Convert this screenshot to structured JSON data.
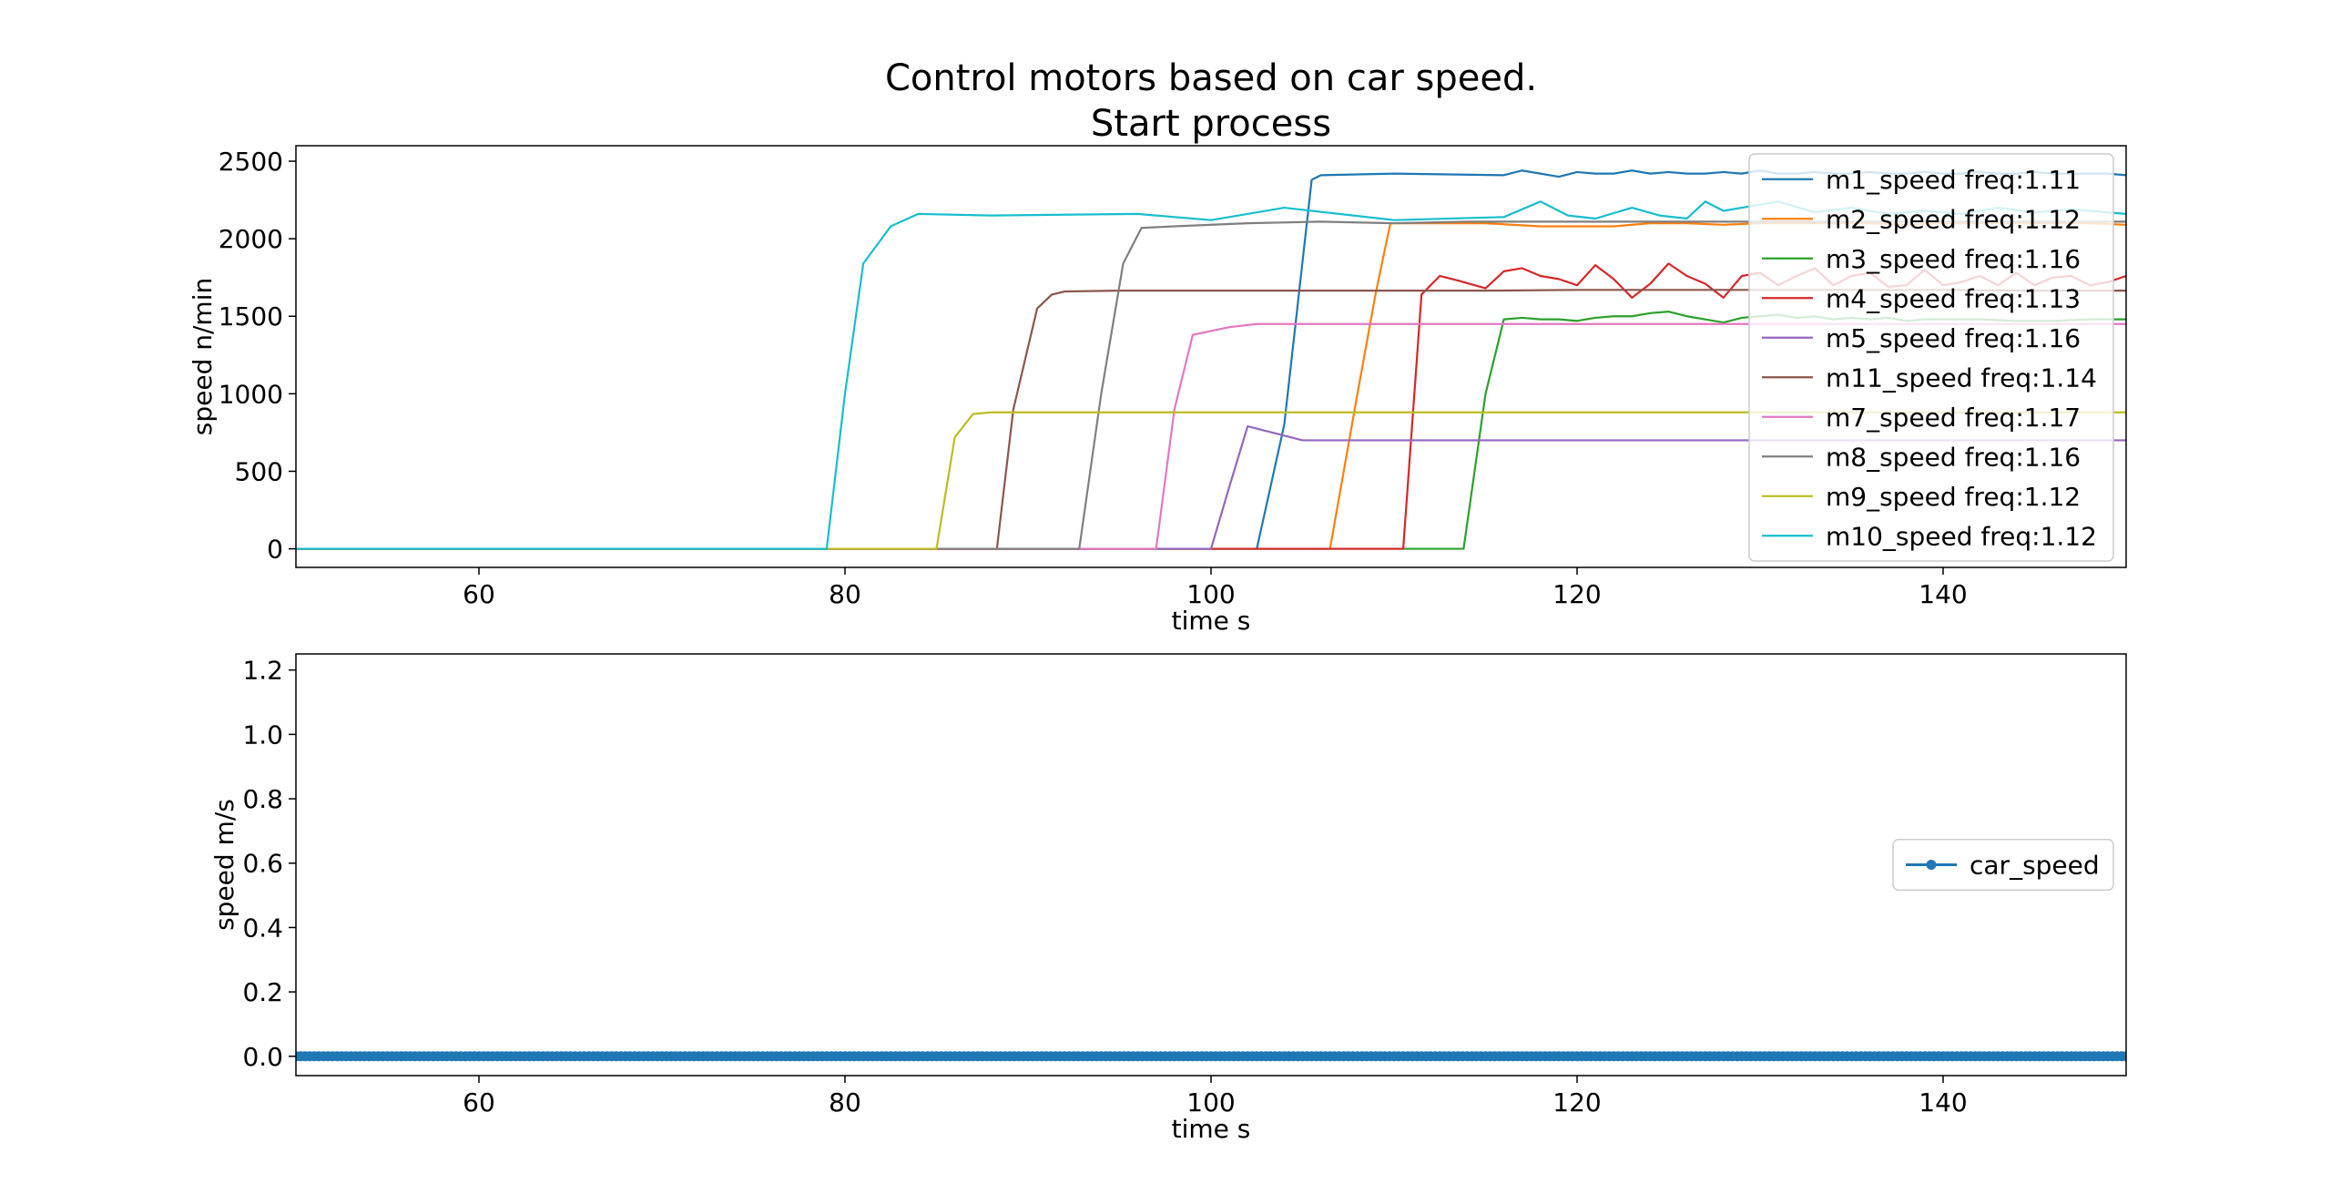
{
  "figure": {
    "title_line1": "Control motors based on car speed.",
    "title_line2": "Start process"
  },
  "chart_data": [
    {
      "type": "line",
      "xlabel": "time s",
      "ylabel": "speed n/min",
      "xlim": [
        50,
        150
      ],
      "ylim": [
        -120,
        2600
      ],
      "xticks": [
        60,
        80,
        100,
        120,
        140
      ],
      "yticks": [
        0,
        500,
        1000,
        1500,
        2000,
        2500
      ],
      "grid": false,
      "legend": "top-right",
      "series": [
        {
          "name": "m1_speed freq:1.11",
          "color": "#1f77b4",
          "x": [
            50,
            102.5,
            104,
            105.5,
            106,
            110,
            116,
            117,
            118,
            119,
            120,
            121,
            122,
            123,
            124,
            125,
            126,
            127,
            128,
            129,
            130,
            131,
            132,
            133,
            134,
            135,
            136,
            137,
            138,
            139,
            140,
            141,
            142,
            143,
            144,
            145,
            146,
            147,
            148,
            149,
            150
          ],
          "y": [
            0,
            0,
            800,
            2380,
            2410,
            2420,
            2410,
            2440,
            2420,
            2400,
            2430,
            2420,
            2420,
            2440,
            2420,
            2430,
            2420,
            2420,
            2430,
            2420,
            2440,
            2420,
            2420,
            2430,
            2420,
            2420,
            2430,
            2420,
            2420,
            2430,
            2420,
            2420,
            2430,
            2420,
            2420,
            2430,
            2420,
            2420,
            2420,
            2420,
            2410
          ]
        },
        {
          "name": "m2_speed freq:1.12",
          "color": "#ff7f0e",
          "x": [
            50,
            106.5,
            108,
            109,
            109.8,
            112,
            115,
            118,
            120,
            122,
            124,
            126,
            128,
            130,
            132,
            134,
            136,
            138,
            140,
            142,
            144,
            146,
            148,
            150
          ],
          "y": [
            0,
            0,
            1000,
            1650,
            2100,
            2100,
            2100,
            2080,
            2080,
            2080,
            2100,
            2100,
            2090,
            2100,
            2100,
            2100,
            2100,
            2090,
            2100,
            2100,
            2100,
            2100,
            2100,
            2090
          ]
        },
        {
          "name": "m3_speed freq:1.16",
          "color": "#2ca02c",
          "x": [
            50,
            113.8,
            115,
            116,
            117,
            118,
            119,
            120,
            121,
            122,
            123,
            124,
            125,
            126,
            127,
            128,
            129,
            130,
            131,
            132,
            133,
            134,
            135,
            136,
            137,
            138,
            139,
            140,
            142,
            144,
            146,
            148,
            150
          ],
          "y": [
            0,
            0,
            1000,
            1480,
            1490,
            1480,
            1480,
            1470,
            1490,
            1500,
            1500,
            1520,
            1530,
            1500,
            1480,
            1460,
            1490,
            1500,
            1510,
            1490,
            1500,
            1480,
            1490,
            1480,
            1490,
            1470,
            1480,
            1480,
            1480,
            1470,
            1470,
            1480,
            1480
          ]
        },
        {
          "name": "m4_speed freq:1.13",
          "color": "#d62728",
          "x": [
            50,
            110.5,
            111.5,
            112.5,
            113.5,
            115,
            116,
            117,
            118,
            119,
            120,
            121,
            122,
            123,
            124,
            125,
            126,
            127,
            128,
            129,
            130,
            131,
            132,
            133,
            134,
            135,
            136,
            137,
            138,
            139,
            140,
            141,
            142,
            143,
            144,
            145,
            146,
            147,
            148,
            149,
            150
          ],
          "y": [
            0,
            0,
            1640,
            1760,
            1730,
            1680,
            1790,
            1810,
            1760,
            1740,
            1700,
            1830,
            1740,
            1620,
            1710,
            1840,
            1760,
            1710,
            1620,
            1760,
            1780,
            1700,
            1760,
            1810,
            1700,
            1760,
            1780,
            1690,
            1700,
            1800,
            1700,
            1720,
            1760,
            1700,
            1780,
            1700,
            1750,
            1760,
            1700,
            1720,
            1760
          ]
        },
        {
          "name": "m5_speed freq:1.16",
          "color": "#9467bd",
          "x": [
            50,
            100,
            101,
            102,
            103,
            105,
            110,
            115,
            120,
            125,
            130,
            135,
            140,
            145,
            150
          ],
          "y": [
            0,
            0,
            400,
            790,
            760,
            700,
            700,
            700,
            700,
            700,
            700,
            700,
            700,
            700,
            700
          ]
        },
        {
          "name": "m11_speed freq:1.14",
          "color": "#8c564b",
          "x": [
            50,
            88.3,
            89.2,
            90.5,
            91.3,
            92,
            95,
            100,
            105,
            110,
            115,
            120,
            125,
            130,
            135,
            140,
            145,
            150
          ],
          "y": [
            0,
            0,
            900,
            1550,
            1640,
            1660,
            1665,
            1665,
            1665,
            1665,
            1665,
            1670,
            1670,
            1670,
            1670,
            1670,
            1665,
            1665
          ]
        },
        {
          "name": "m7_speed freq:1.17",
          "color": "#e377c2",
          "x": [
            50,
            97,
            98,
            99,
            101,
            102.5,
            105,
            110,
            115,
            120,
            125,
            130,
            135,
            140,
            145,
            150
          ],
          "y": [
            0,
            0,
            900,
            1380,
            1430,
            1450,
            1450,
            1450,
            1450,
            1450,
            1450,
            1450,
            1450,
            1450,
            1450,
            1450
          ]
        },
        {
          "name": "m8_speed freq:1.16",
          "color": "#7f7f7f",
          "x": [
            50,
            92.8,
            94,
            95.2,
            96.2,
            98,
            102,
            106,
            110,
            114,
            118,
            122,
            126,
            130,
            134,
            138,
            142,
            146,
            150
          ],
          "y": [
            0,
            0,
            1000,
            1840,
            2070,
            2080,
            2100,
            2110,
            2100,
            2110,
            2110,
            2110,
            2110,
            2110,
            2110,
            2110,
            2110,
            2110,
            2110
          ]
        },
        {
          "name": "m9_speed freq:1.12",
          "color": "#bcbd22",
          "x": [
            50,
            85,
            86,
            87,
            88,
            95,
            100,
            105,
            110,
            115,
            120,
            125,
            130,
            135,
            140,
            145,
            150
          ],
          "y": [
            0,
            0,
            720,
            870,
            880,
            880,
            880,
            880,
            880,
            880,
            880,
            880,
            880,
            880,
            880,
            880,
            880
          ]
        },
        {
          "name": "m10_speed freq:1.12",
          "color": "#17becf",
          "x": [
            50,
            79,
            80,
            81,
            82.5,
            84,
            88,
            96,
            100,
            104,
            110,
            116,
            118,
            119.5,
            121,
            123,
            124.5,
            126,
            127,
            128,
            129,
            131,
            133,
            135,
            137,
            139,
            141,
            143,
            145,
            147,
            150
          ],
          "y": [
            0,
            0,
            1000,
            1840,
            2080,
            2160,
            2150,
            2160,
            2120,
            2200,
            2120,
            2140,
            2240,
            2150,
            2130,
            2200,
            2150,
            2130,
            2240,
            2180,
            2200,
            2240,
            2170,
            2200,
            2160,
            2180,
            2160,
            2200,
            2170,
            2190,
            2160
          ]
        }
      ]
    },
    {
      "type": "line",
      "xlabel": "time s",
      "ylabel": "speed m/s",
      "xlim": [
        50,
        150
      ],
      "ylim": [
        -0.06,
        1.25
      ],
      "xticks": [
        60,
        80,
        100,
        120,
        140
      ],
      "yticks": [
        "0.0",
        "0.2",
        "0.4",
        "0.6",
        "0.8",
        "1.0",
        "1.2"
      ],
      "grid": false,
      "legend": "center-right",
      "marker": "o",
      "series": [
        {
          "name": "car_speed",
          "color": "#1f77b4",
          "x_start": 50,
          "x_end": 150,
          "sample_step": 0.25,
          "value": 0.0
        }
      ]
    }
  ]
}
